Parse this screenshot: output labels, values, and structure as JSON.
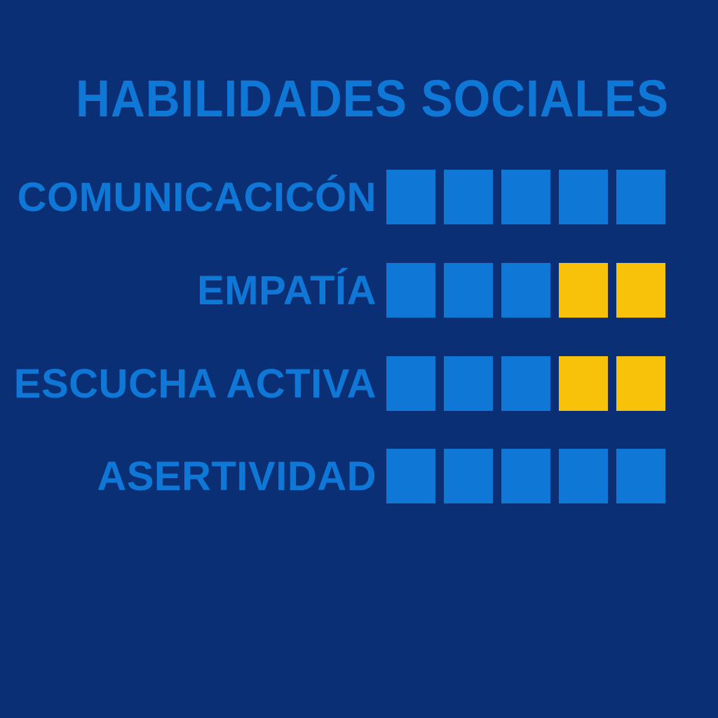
{
  "chart_data": {
    "type": "table",
    "title": "HABILIDADES SOCIALES",
    "max_blocks": 5,
    "rows": [
      {
        "label": "COMUNICACICÓN",
        "blue_blocks": 5,
        "yellow_blocks": 0
      },
      {
        "label": "EMPATÍA",
        "blue_blocks": 3,
        "yellow_blocks": 2
      },
      {
        "label": "ESCUCHA ACTIVA",
        "blue_blocks": 3,
        "yellow_blocks": 2
      },
      {
        "label": "ASERTIVIDAD",
        "blue_blocks": 5,
        "yellow_blocks": 0
      }
    ],
    "colors": {
      "background": "#0b2f75",
      "blue": "#0f78d6",
      "yellow": "#f8c20b"
    }
  }
}
